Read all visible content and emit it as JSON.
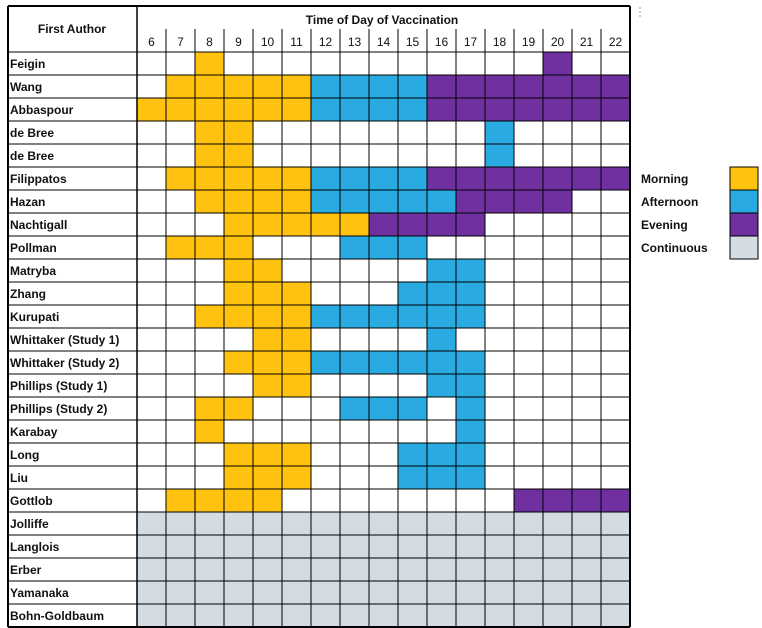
{
  "chart_data": {
    "type": "heatmap",
    "title": "Time of Day of Vaccination",
    "row_header": "First Author",
    "hours": [
      "6",
      "7",
      "8",
      "9",
      "10",
      "11",
      "12",
      "13",
      "14",
      "15",
      "16",
      "17",
      "18",
      "19",
      "20",
      "21",
      "22"
    ],
    "categories": {
      "M": {
        "name": "Morning",
        "color": "#FFC20E"
      },
      "A": {
        "name": "Afternoon",
        "color": "#29ABE2"
      },
      "E": {
        "name": "Evening",
        "color": "#7030A0"
      },
      "C": {
        "name": "Continuous",
        "color": "#D5DBE3"
      }
    },
    "legend_order": [
      "M",
      "A",
      "E",
      "C"
    ],
    "legend_position": "right",
    "rows": [
      {
        "author": "Feigin",
        "cells": "__M___________E__"
      },
      {
        "author": "Wang",
        "cells": "_MMMMMAAAAEEEEEEE"
      },
      {
        "author": "Abbaspour",
        "cells": "MMMMMMAAAAEEEEEEE"
      },
      {
        "author": "de Bree",
        "cells": "__MM________A____"
      },
      {
        "author": "de Bree",
        "cells": "__MM________A____"
      },
      {
        "author": "Filippatos",
        "cells": "_MMMMMAAAAEEEEEEE"
      },
      {
        "author": "Hazan",
        "cells": "__MMMMAAAAAEEEE__"
      },
      {
        "author": "Nachtigall",
        "cells": "___MMMMMEEEE_____"
      },
      {
        "author": "Pollman",
        "cells": "_MMM___AAA_______"
      },
      {
        "author": "Matryba",
        "cells": "___MM_____AA_____"
      },
      {
        "author": "Zhang",
        "cells": "___MMM___AAA_____"
      },
      {
        "author": "Kurupati",
        "cells": "__MMMMAAAAAA_____"
      },
      {
        "author": "Whittaker (Study 1)",
        "cells": "____MM____A______"
      },
      {
        "author": "Whittaker (Study 2)",
        "cells": "___MMMAAAAAA_____"
      },
      {
        "author": "Phillips (Study 1)",
        "cells": "____MM____AA_____"
      },
      {
        "author": "Phillips (Study 2)",
        "cells": "__MM___AAA_A_____"
      },
      {
        "author": "Karabay",
        "cells": "__M________A_____"
      },
      {
        "author": "Long",
        "cells": "___MMM___AAA_____"
      },
      {
        "author": "Liu",
        "cells": "___MMM___AAA_____"
      },
      {
        "author": "Gottlob",
        "cells": "_MMMM________EEEE"
      },
      {
        "author": "Jolliffe",
        "cells": "CCCCCCCCCCCCCCCCC"
      },
      {
        "author": "Langlois",
        "cells": "CCCCCCCCCCCCCCCCC"
      },
      {
        "author": "Erber",
        "cells": "CCCCCCCCCCCCCCCCC"
      },
      {
        "author": "Yamanaka",
        "cells": "CCCCCCCCCCCCCCCCC"
      },
      {
        "author": "Bohn-Goldbaum",
        "cells": "CCCCCCCCCCCCCCCCC"
      }
    ]
  }
}
